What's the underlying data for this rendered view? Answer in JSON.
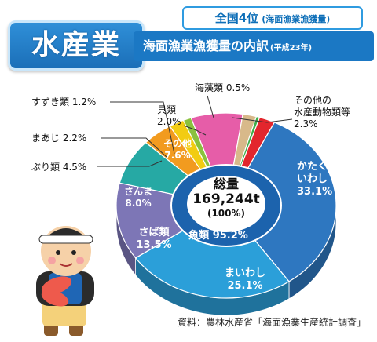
{
  "header": {
    "badge_main": "水産業",
    "rank_big": "全国4位",
    "rank_small": "(海面漁業漁獲量)",
    "title": "海面漁業漁獲量の内訳",
    "title_year": "(平成23年)"
  },
  "chart_data": {
    "type": "pie",
    "title": "海面漁業漁獲量の内訳",
    "center_label": [
      "総量",
      "169,244t",
      "(100%)"
    ],
    "inner_ring_label": "魚類 95.2%",
    "unit": "%",
    "slices": [
      {
        "name": "かたくちいわし",
        "value": 33.1,
        "label_lines": [
          "かたくち",
          "いわし",
          "33.1%"
        ],
        "color": "#2e77c0"
      },
      {
        "name": "まいわし",
        "value": 25.1,
        "label_lines": [
          "まいわし",
          "25.1%"
        ],
        "color": "#2b9fd9"
      },
      {
        "name": "さば類",
        "value": 13.5,
        "label_lines": [
          "さば類",
          "13.5%"
        ],
        "color": "#7d76b6"
      },
      {
        "name": "さんま",
        "value": 8.0,
        "label_lines": [
          "さんま",
          "8.0%"
        ],
        "color": "#26a9a4"
      },
      {
        "name": "ぶり類",
        "value": 4.5,
        "label_lines": [
          "ぶり類 4.5%"
        ],
        "color": "#f29b1f"
      },
      {
        "name": "まあじ",
        "value": 2.2,
        "label_lines": [
          "まあじ 2.2%"
        ],
        "color": "#f2cc12"
      },
      {
        "name": "すずき類",
        "value": 1.2,
        "label_lines": [
          "すずき類 1.2%"
        ],
        "color": "#8ac13e"
      },
      {
        "name": "その他",
        "value": 7.6,
        "label_lines": [
          "その他",
          "7.6%"
        ],
        "color": "#e65da8"
      },
      {
        "name": "貝類",
        "value": 2.0,
        "label_lines": [
          "貝類",
          "2.0%"
        ],
        "color": "#d8b98a"
      },
      {
        "name": "海藻類",
        "value": 0.5,
        "label_lines": [
          "海藻類 0.5%"
        ],
        "color": "#3fae49"
      },
      {
        "name": "その他の水産動物類等",
        "value": 2.3,
        "label_lines": [
          "その他の",
          "水産動物類等",
          "2.3%"
        ],
        "color": "#e3262d"
      }
    ]
  },
  "source": "資料：農林水産省「海面漁業生産統計調査」"
}
